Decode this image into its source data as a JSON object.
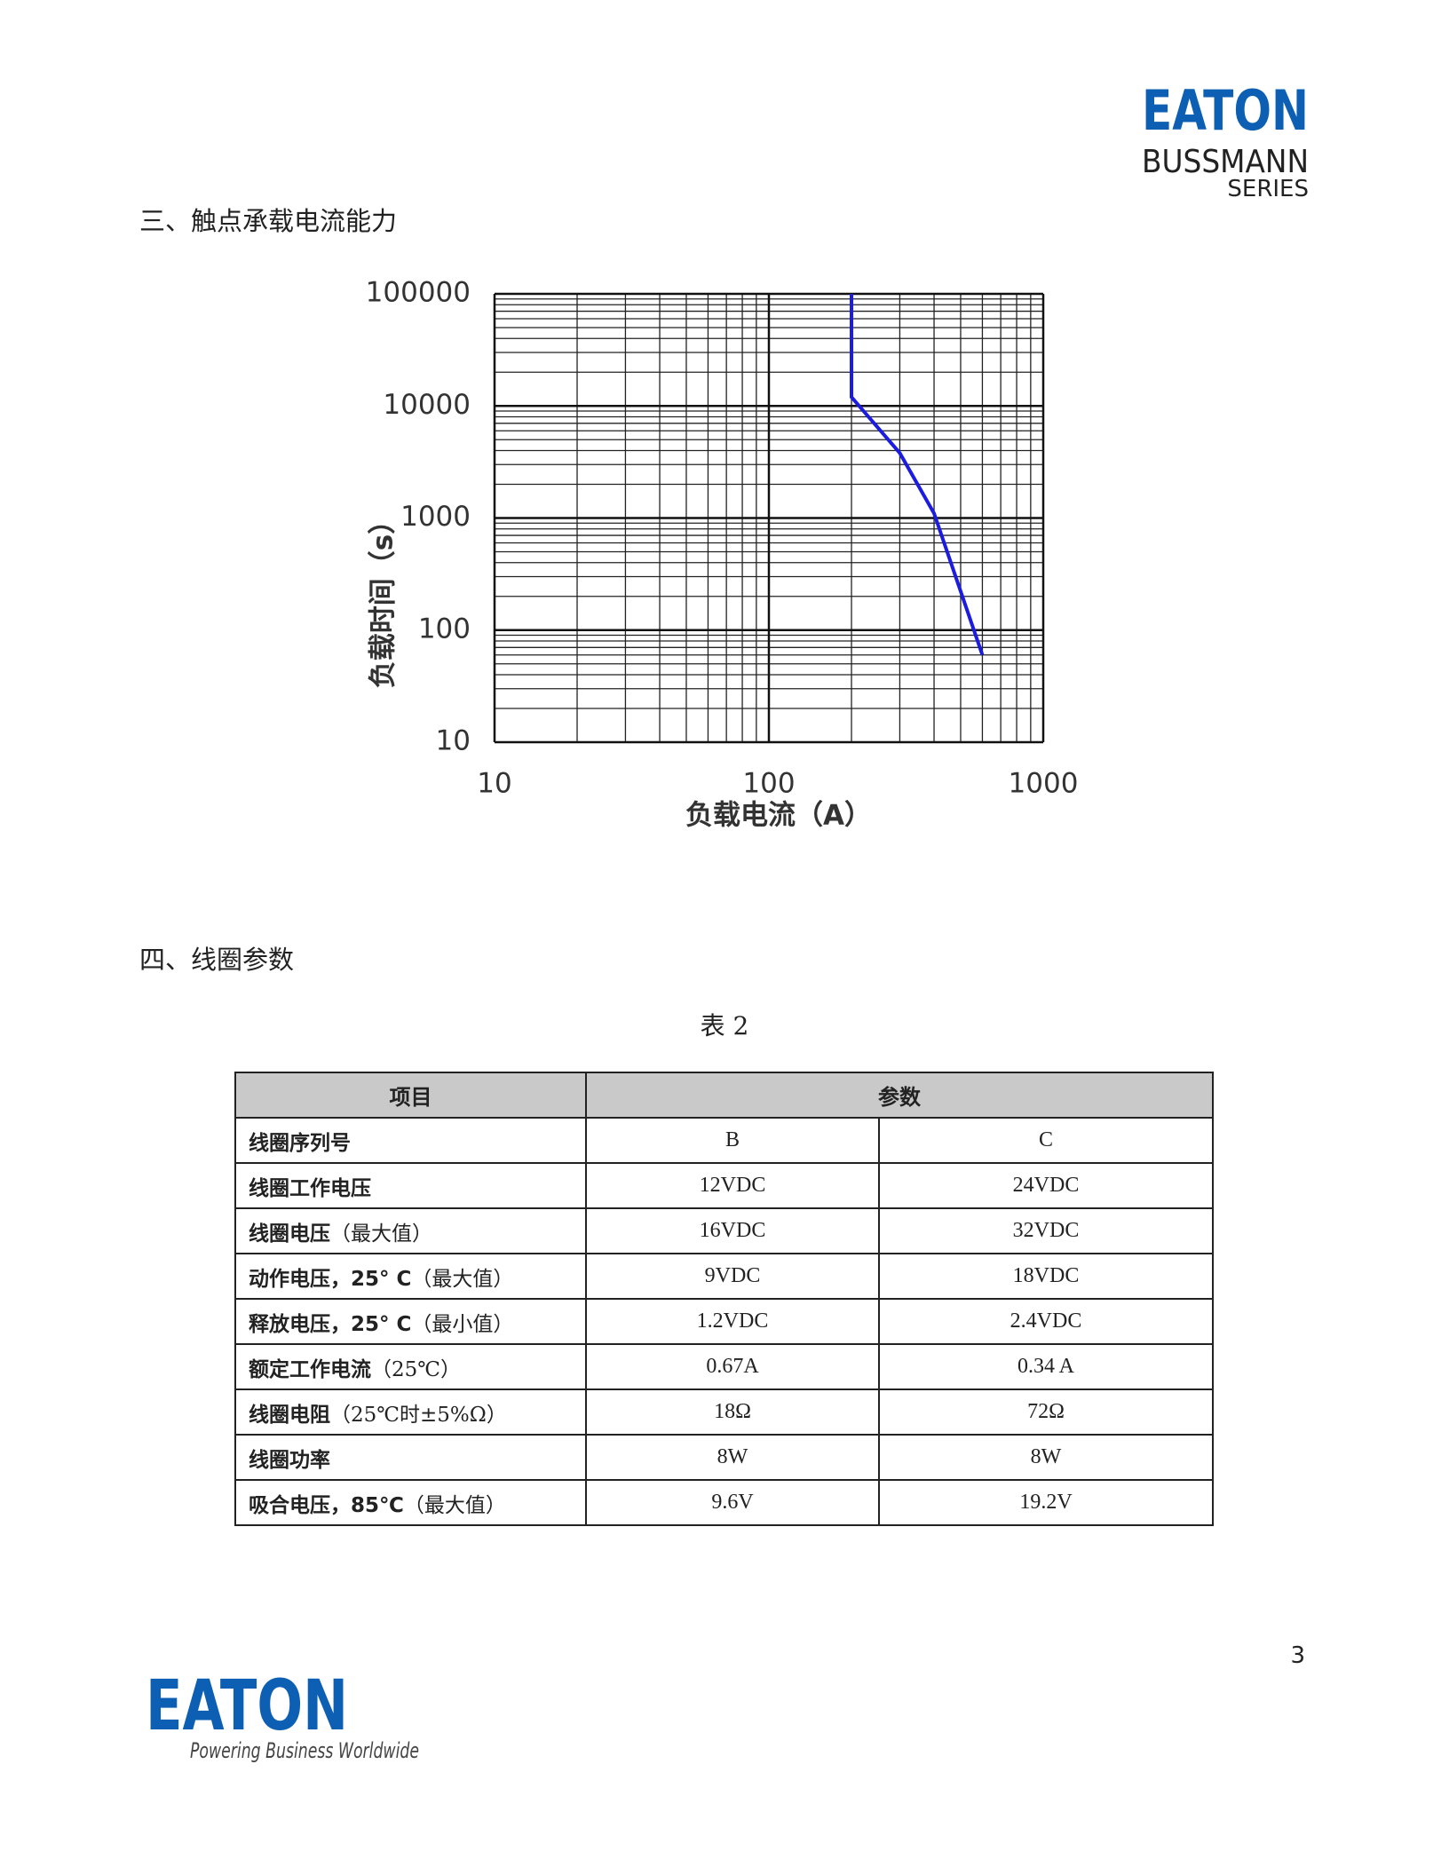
{
  "header": {
    "brand": "EATON",
    "sub_brand": "BUSSMANN",
    "series": "SERIES"
  },
  "section3": {
    "heading": "三、触点承载电流能力"
  },
  "chart_data": {
    "type": "line",
    "x_label": "负载电流（A）",
    "y_label": "负载时间（s）",
    "x": [
      200,
      200,
      300,
      400,
      600
    ],
    "values": [
      100000,
      12000,
      3800,
      1100,
      60
    ],
    "color": "#1c1ce0",
    "xlim": [
      10,
      1000
    ],
    "ylim": [
      10,
      100000
    ],
    "xticks": [
      10,
      100,
      1000
    ],
    "yticks": [
      10,
      100,
      1000,
      10000,
      100000
    ],
    "x_minor_ticks": [
      20,
      30,
      40,
      50,
      60,
      70,
      80,
      90,
      200,
      300,
      400,
      500,
      600,
      700,
      800,
      900
    ],
    "y_minor_ticks": [
      20,
      30,
      40,
      50,
      60,
      70,
      80,
      90,
      200,
      300,
      400,
      500,
      600,
      700,
      800,
      900,
      2000,
      3000,
      4000,
      5000,
      6000,
      7000,
      8000,
      9000,
      20000,
      30000,
      40000,
      50000,
      60000,
      70000,
      80000,
      90000
    ],
    "log_scale": true,
    "grid": true
  },
  "section4": {
    "heading": "四、线圈参数"
  },
  "table": {
    "caption": "表 2",
    "header": [
      "项目",
      "参数"
    ],
    "rows": [
      {
        "name": "线圈序列号",
        "note": null,
        "b": "B",
        "c": "C"
      },
      {
        "name": "线圈工作电压",
        "note": null,
        "b": "12VDC",
        "c": "24VDC"
      },
      {
        "name": "线圈电压",
        "note": "（最大值）",
        "b": "16VDC",
        "c": "32VDC"
      },
      {
        "name": "动作电压，25° C",
        "note": "（最大值）",
        "b": "9VDC",
        "c": "18VDC"
      },
      {
        "name": "释放电压，25° C",
        "note": "（最小值）",
        "b": "1.2VDC",
        "c": "2.4VDC"
      },
      {
        "name": "额定工作电流",
        "note": "（25℃）",
        "b": "0.67A",
        "c": "0.34 A"
      },
      {
        "name": "线圈电阻",
        "note": "（25℃时±5%Ω）",
        "b": "18Ω",
        "c": "72Ω"
      },
      {
        "name": "线圈功率",
        "note": null,
        "b": "8W",
        "c": "8W"
      },
      {
        "name": "吸合电压，85℃",
        "note": "（最大值）",
        "b": "9.6V",
        "c": "19.2V"
      }
    ]
  },
  "footer": {
    "page_number": "3",
    "brand": "EATON",
    "tagline": "Powering Business Worldwide"
  }
}
